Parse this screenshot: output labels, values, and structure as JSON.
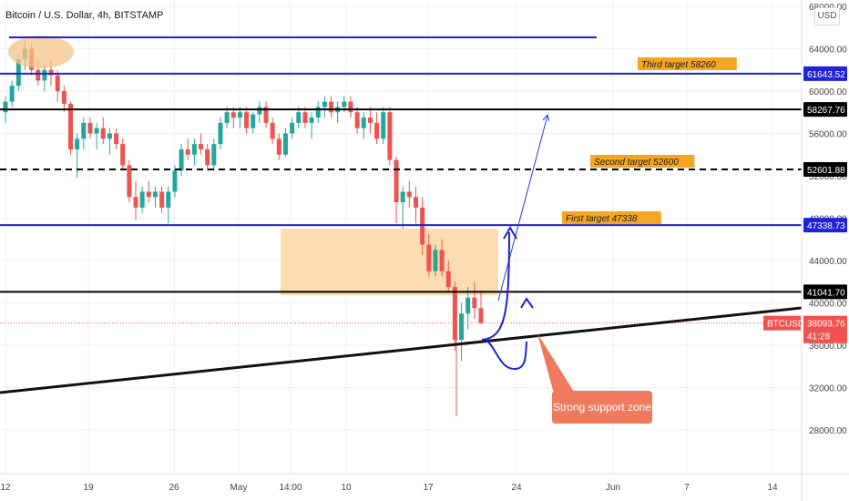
{
  "header": {
    "title": "Bitcoin / U.S. Dollar, 4h, BITSTAMP",
    "currency_button": "USD"
  },
  "colors": {
    "up": "#26a69a",
    "down": "#ef5350",
    "blue_line": "#1f22d6",
    "black_line": "#000000",
    "zone_fill": "#fdd6a3",
    "target_label_bg": "#f5a623",
    "callout_bg": "#f07a5d",
    "current_price_bg": "#ef5350"
  },
  "annotation": {
    "support_text": "Strong support zone"
  },
  "chart_data": {
    "type": "candlestick",
    "symbol": "BTCUSD",
    "timeframe": "4h",
    "ylim": [
      26000,
      68000
    ],
    "y_ticks": [
      "28000.00",
      "32000.00",
      "36000.00",
      "40000.00",
      "44000.00",
      "48000.00",
      "52000.00",
      "56000.00",
      "60000.00",
      "64000.00",
      "68000.00"
    ],
    "x_ticks": [
      "12",
      "19",
      "26",
      "May",
      "14:00",
      "10",
      "17",
      "24",
      "Jun",
      "7",
      "14"
    ],
    "price_levels": [
      {
        "label": "61643.52",
        "value": 61643.52,
        "style": "blue"
      },
      {
        "label": "58267.76",
        "value": 58267.76,
        "style": "black"
      },
      {
        "label": "52601.88",
        "value": 52601.88,
        "style": "black-dashed"
      },
      {
        "label": "47338.73",
        "value": 47338.73,
        "style": "blue"
      },
      {
        "label": "41041.70",
        "value": 41041.7,
        "style": "black"
      }
    ],
    "current_price": {
      "symbol": "BTCUSD",
      "value": "38093.76",
      "countdown": "41:28"
    },
    "targets": [
      {
        "text": "Third target 58260"
      },
      {
        "text": "Second target 52600"
      },
      {
        "text": "First target 47338"
      }
    ],
    "ohlc": [
      [
        58000,
        59500,
        57000,
        59000
      ],
      [
        59000,
        61000,
        58500,
        60500
      ],
      [
        60500,
        63500,
        60000,
        63000
      ],
      [
        63000,
        64800,
        62000,
        64000
      ],
      [
        64000,
        64500,
        61500,
        62000
      ],
      [
        62000,
        63000,
        60500,
        61000
      ],
      [
        61000,
        62500,
        60000,
        62000
      ],
      [
        62000,
        63000,
        60500,
        61500
      ],
      [
        61500,
        62000,
        59000,
        60000
      ],
      [
        60000,
        60500,
        58000,
        58800
      ],
      [
        58800,
        59000,
        54000,
        54500
      ],
      [
        54500,
        56000,
        51800,
        55500
      ],
      [
        55500,
        57500,
        54500,
        57000
      ],
      [
        57000,
        57500,
        55500,
        56000
      ],
      [
        56000,
        57000,
        54500,
        56500
      ],
      [
        56500,
        57500,
        55000,
        55500
      ],
      [
        55500,
        56500,
        54000,
        56000
      ],
      [
        56000,
        56500,
        54500,
        55000
      ],
      [
        55000,
        55500,
        52500,
        53000
      ],
      [
        53000,
        53500,
        49500,
        50000
      ],
      [
        50000,
        51500,
        47800,
        49000
      ],
      [
        49000,
        51000,
        48500,
        50500
      ],
      [
        50500,
        51500,
        49500,
        50000
      ],
      [
        50000,
        51000,
        49000,
        50500
      ],
      [
        50500,
        51000,
        48500,
        49000
      ],
      [
        49000,
        51000,
        47500,
        50500
      ],
      [
        50500,
        53000,
        50000,
        52500
      ],
      [
        52500,
        55000,
        52000,
        54500
      ],
      [
        54500,
        55500,
        53500,
        54000
      ],
      [
        54000,
        55500,
        53000,
        55000
      ],
      [
        55000,
        56000,
        54000,
        54500
      ],
      [
        54500,
        55000,
        52500,
        53000
      ],
      [
        53000,
        55500,
        52500,
        55000
      ],
      [
        55000,
        57500,
        54500,
        57000
      ],
      [
        57000,
        58500,
        56500,
        58000
      ],
      [
        58000,
        58500,
        56500,
        57500
      ],
      [
        57500,
        58500,
        56500,
        58000
      ],
      [
        58000,
        58500,
        56000,
        56500
      ],
      [
        56500,
        58000,
        56000,
        57800
      ],
      [
        57800,
        59000,
        57000,
        58500
      ],
      [
        58500,
        59000,
        56500,
        57000
      ],
      [
        57000,
        57500,
        55000,
        55500
      ],
      [
        55500,
        56000,
        53500,
        54000
      ],
      [
        54000,
        56500,
        53800,
        56000
      ],
      [
        56000,
        57500,
        55500,
        57000
      ],
      [
        57000,
        58500,
        56500,
        58000
      ],
      [
        58000,
        58500,
        56500,
        57000
      ],
      [
        57000,
        58000,
        55500,
        57500
      ],
      [
        57500,
        59000,
        57000,
        58500
      ],
      [
        58500,
        59500,
        57500,
        59000
      ],
      [
        59000,
        59500,
        57500,
        58000
      ],
      [
        58000,
        59000,
        57000,
        58500
      ],
      [
        58500,
        59500,
        58000,
        59000
      ],
      [
        59000,
        59500,
        57500,
        58000
      ],
      [
        58000,
        58500,
        56000,
        56500
      ],
      [
        56500,
        58000,
        55500,
        57500
      ],
      [
        57500,
        58500,
        56000,
        57000
      ],
      [
        57000,
        58000,
        55000,
        55500
      ],
      [
        55500,
        58500,
        55000,
        58000
      ],
      [
        58000,
        58500,
        53000,
        53500
      ],
      [
        53500,
        53800,
        47500,
        49500
      ],
      [
        49500,
        51000,
        47000,
        50500
      ],
      [
        50500,
        51500,
        49000,
        50000
      ],
      [
        50000,
        51000,
        47500,
        49000
      ],
      [
        49000,
        50000,
        44500,
        45500
      ],
      [
        45500,
        46500,
        42500,
        43000
      ],
      [
        43000,
        45500,
        42500,
        45000
      ],
      [
        45000,
        46000,
        42500,
        43000
      ],
      [
        43000,
        44000,
        41000,
        41500
      ],
      [
        41500,
        42000,
        35500,
        36500
      ],
      [
        36500,
        40000,
        34500,
        39000
      ],
      [
        39000,
        41500,
        37500,
        40500
      ],
      [
        40500,
        42000,
        38500,
        39500
      ],
      [
        39500,
        41000,
        38000,
        38094
      ]
    ]
  }
}
